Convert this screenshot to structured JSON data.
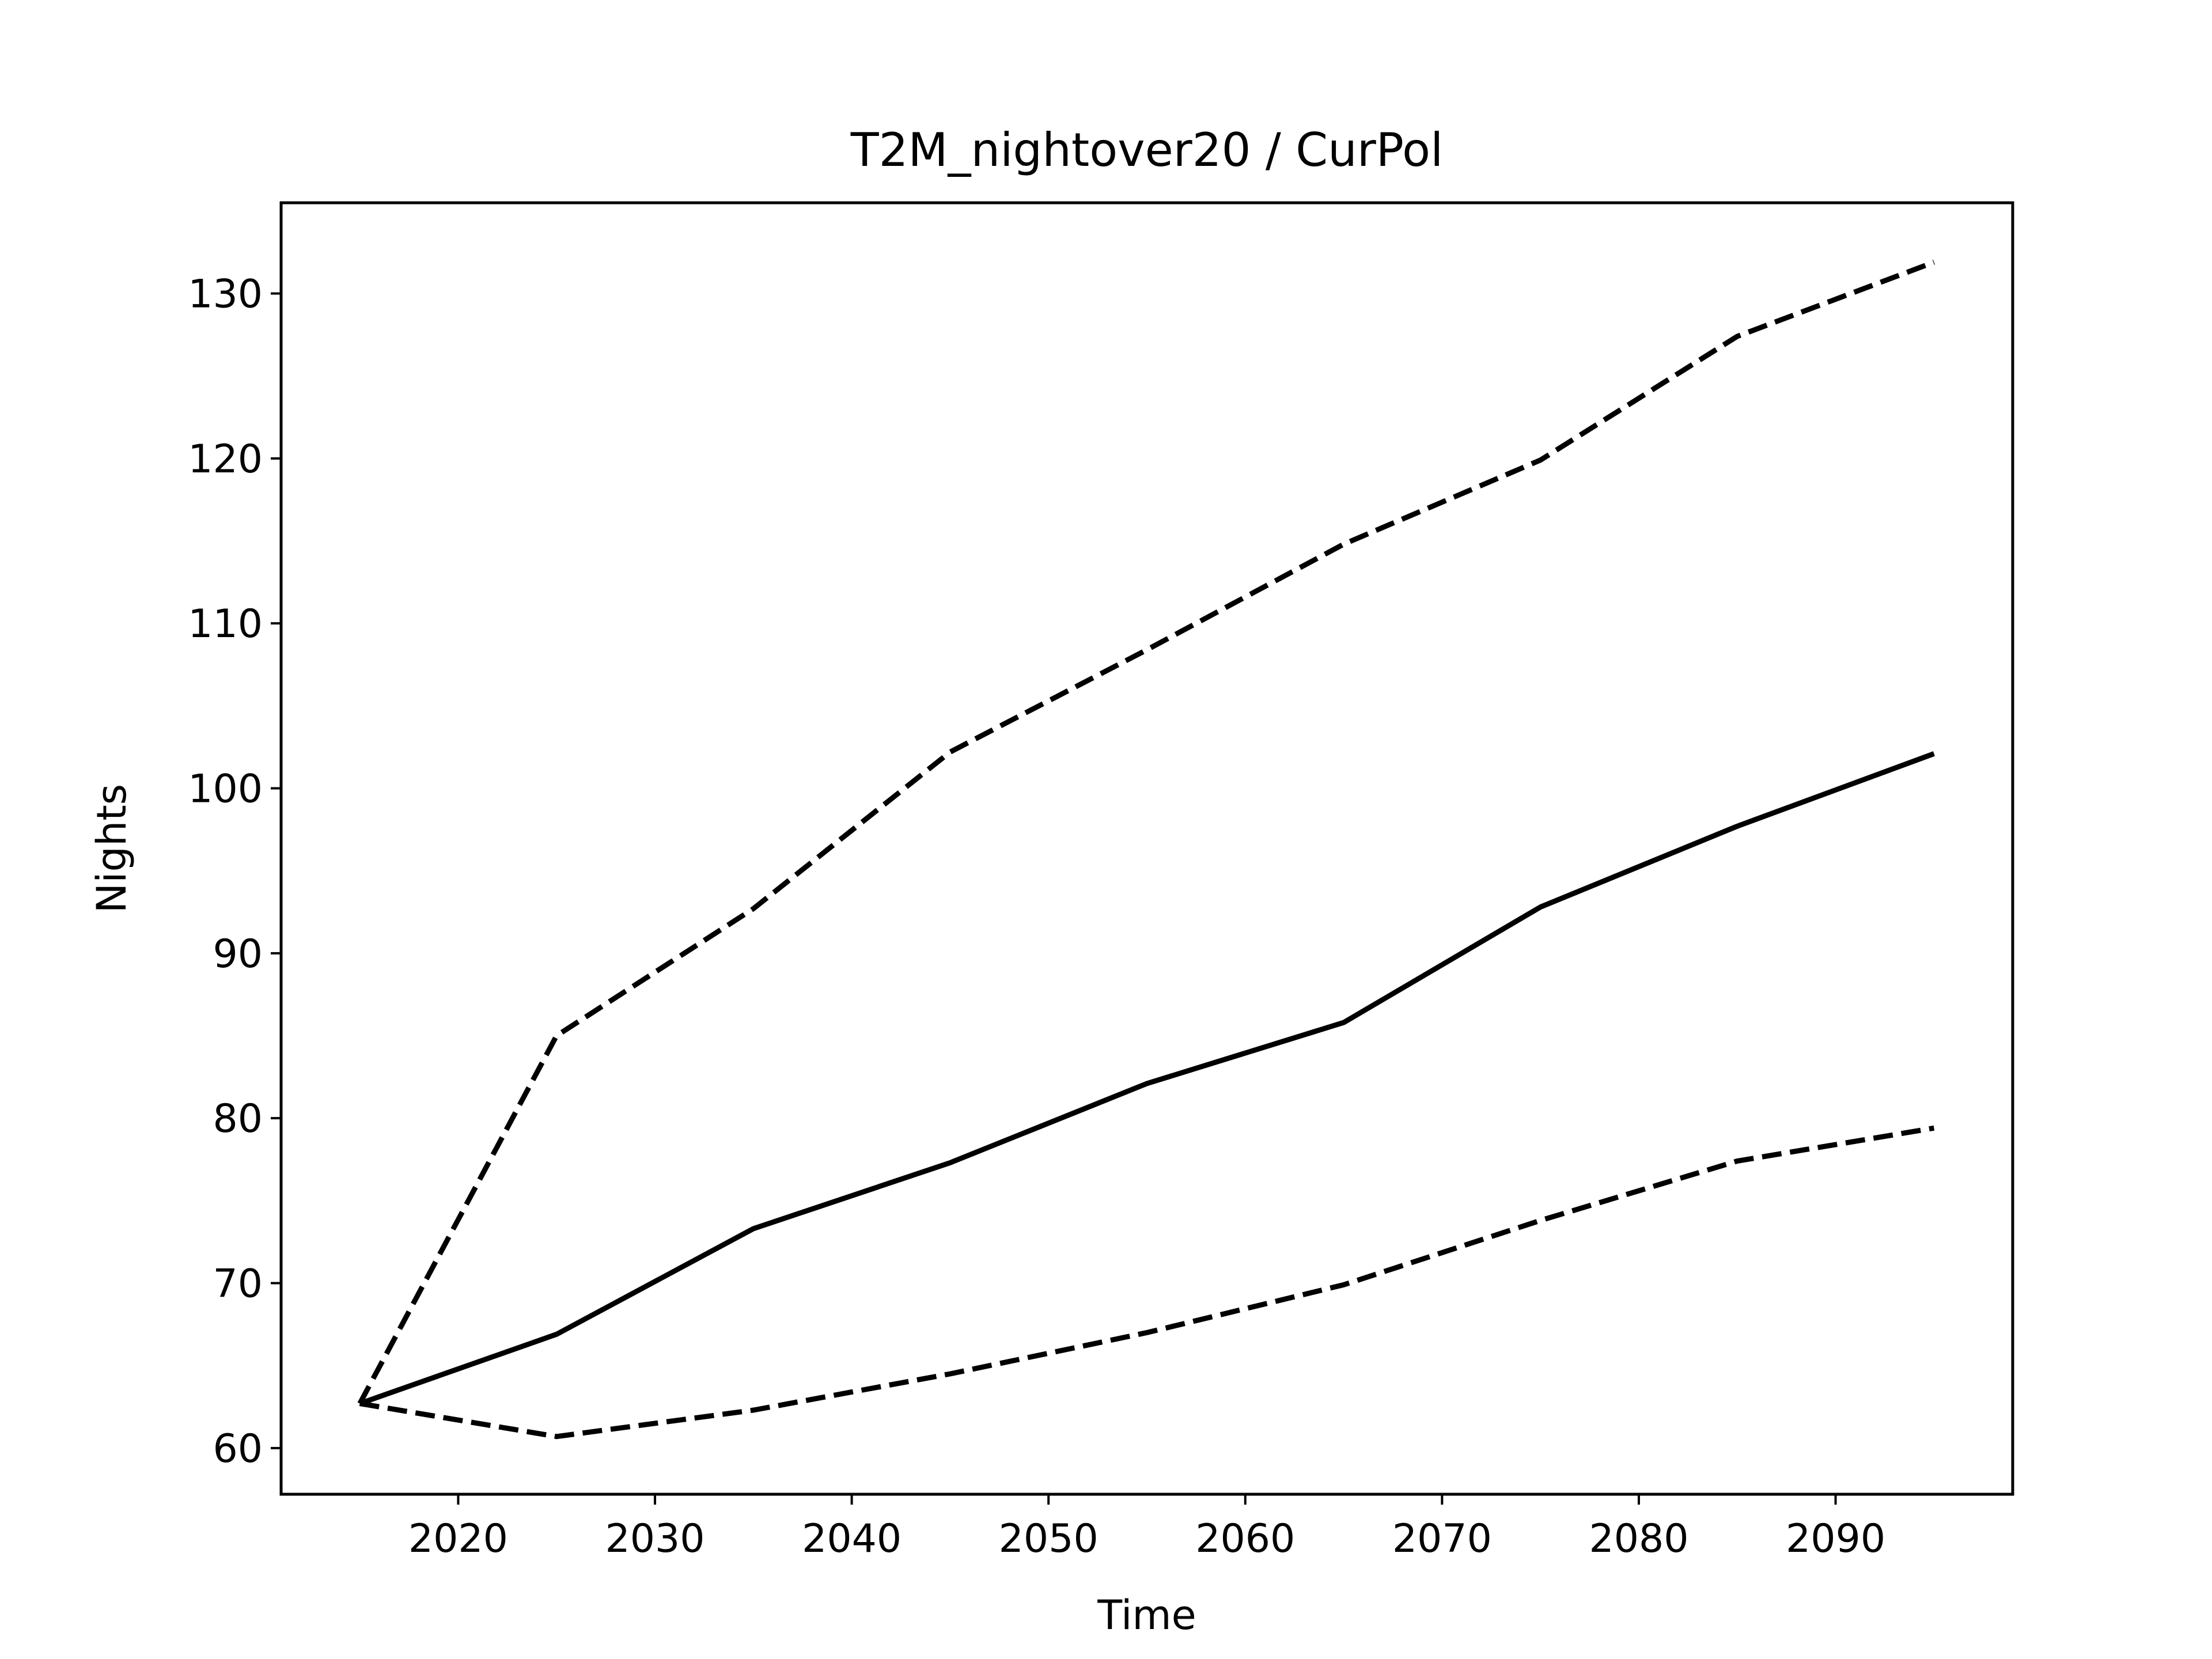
{
  "chart_data": {
    "type": "line",
    "title": "T2M_nightover20 / CurPol",
    "xlabel": "Time",
    "ylabel": "Nights",
    "xlim": [
      2011,
      2099
    ],
    "ylim": [
      57.2,
      135.5
    ],
    "xticks": [
      2020,
      2030,
      2040,
      2050,
      2060,
      2070,
      2080,
      2090
    ],
    "yticks": [
      60,
      70,
      80,
      90,
      100,
      110,
      120,
      130
    ],
    "grid": false,
    "legend": "none",
    "x": [
      2015,
      2025,
      2035,
      2045,
      2055,
      2065,
      2075,
      2085,
      2095
    ],
    "series": [
      {
        "style": "solid",
        "color": "#000000",
        "values": [
          62.7,
          66.9,
          73.3,
          77.3,
          82.1,
          85.8,
          92.8,
          97.7,
          102.1
        ]
      },
      {
        "style": "dashed",
        "color": "#000000",
        "values": [
          62.7,
          85.0,
          92.7,
          102.2,
          108.4,
          114.8,
          119.9,
          127.4,
          131.9
        ]
      },
      {
        "style": "dashed",
        "color": "#000000",
        "values": [
          62.7,
          60.7,
          62.3,
          64.5,
          67.0,
          69.9,
          73.8,
          77.4,
          79.4
        ]
      }
    ]
  }
}
